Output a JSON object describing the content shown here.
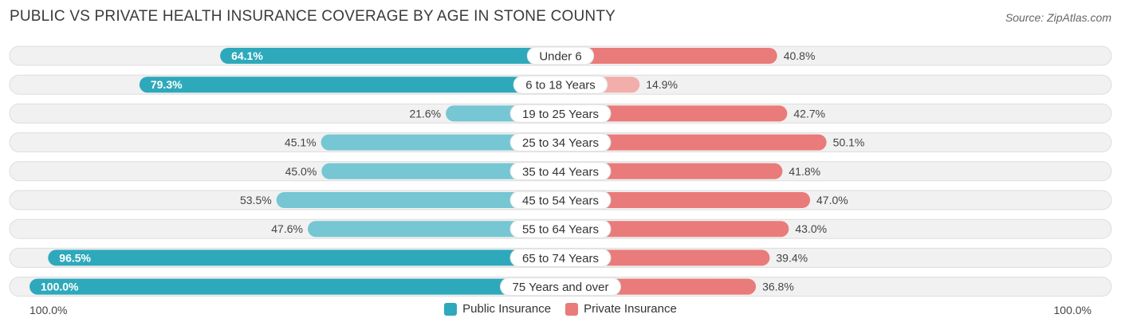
{
  "title": "PUBLIC VS PRIVATE HEALTH INSURANCE COVERAGE BY AGE IN STONE COUNTY",
  "source": "Source: ZipAtlas.com",
  "colors": {
    "public_strong": "#2ea9bb",
    "public_light": "#76c6d3",
    "private_strong": "#e97b7a",
    "private_light": "#f2aeab",
    "row_bg": "#f1f1f1",
    "row_border": "#dddddd"
  },
  "chart_data": {
    "type": "bar",
    "orientation": "diverging-horizontal",
    "categories": [
      "Under 6",
      "6 to 18 Years",
      "19 to 25 Years",
      "25 to 34 Years",
      "35 to 44 Years",
      "45 to 54 Years",
      "55 to 64 Years",
      "65 to 74 Years",
      "75 Years and over"
    ],
    "series": [
      {
        "name": "Public Insurance",
        "values": [
          64.1,
          79.3,
          21.6,
          45.1,
          45.0,
          53.5,
          47.6,
          96.5,
          100.0
        ],
        "labels": [
          "64.1%",
          "79.3%",
          "21.6%",
          "45.1%",
          "45.0%",
          "53.5%",
          "47.6%",
          "96.5%",
          "100.0%"
        ]
      },
      {
        "name": "Private Insurance",
        "values": [
          40.8,
          14.9,
          42.7,
          50.1,
          41.8,
          47.0,
          43.0,
          39.4,
          36.8
        ],
        "labels": [
          "40.8%",
          "14.9%",
          "42.7%",
          "50.1%",
          "41.8%",
          "47.0%",
          "43.0%",
          "39.4%",
          "36.8%"
        ]
      }
    ],
    "xlim": [
      0,
      100
    ],
    "axis_left_label": "100.0%",
    "axis_right_label": "100.0%",
    "legend_position": "bottom-center"
  }
}
